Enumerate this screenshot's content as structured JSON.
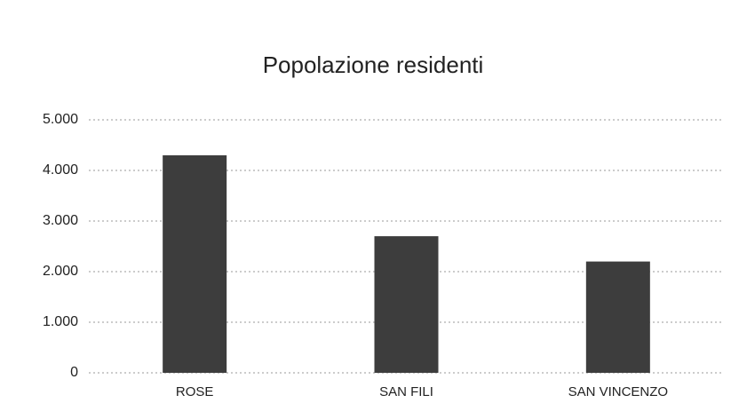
{
  "chart_data": {
    "type": "bar",
    "title": "Popolazione residenti",
    "categories": [
      "ROSE",
      "SAN FILI",
      "SAN VINCENZO"
    ],
    "values": [
      4300,
      2700,
      2200
    ],
    "color": "#3d3d3d",
    "ylim": [
      0,
      5000
    ],
    "yticks": [
      0,
      {
        "value": 1000,
        "label": "1.000"
      },
      {
        "value": 2000,
        "label": "2.000"
      },
      {
        "value": 3000,
        "label": "3.000"
      },
      {
        "value": 4000,
        "label": "4.000"
      },
      {
        "value": 5000,
        "label": "5.000"
      }
    ],
    "grid": true
  }
}
